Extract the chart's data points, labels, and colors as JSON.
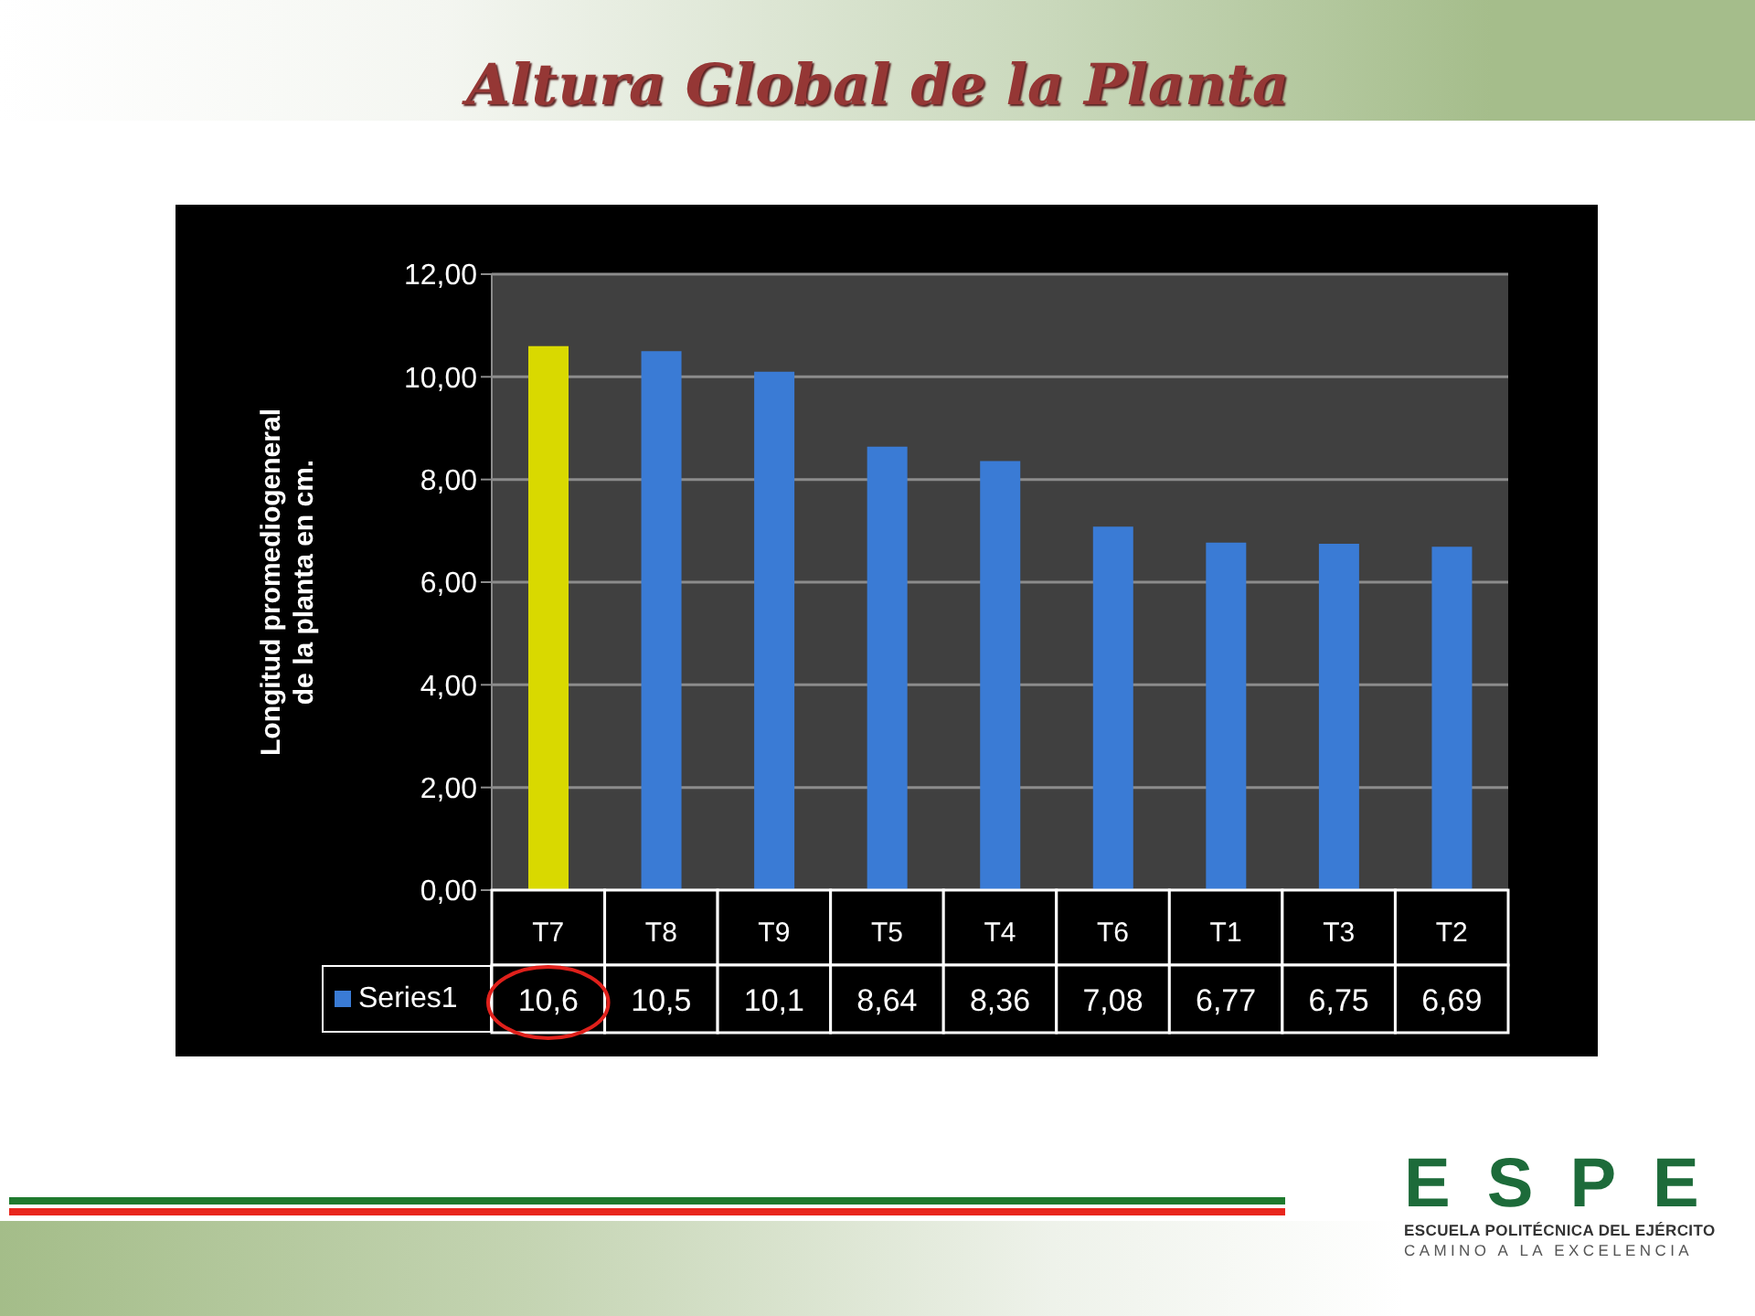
{
  "chart_data": {
    "type": "bar",
    "title": "Altura Global de la Planta",
    "ylabel": "Longitud promediogeneral de la planta en cm.",
    "categories": [
      "T7",
      "T8",
      "T9",
      "T5",
      "T4",
      "T6",
      "T1",
      "T3",
      "T2"
    ],
    "series": [
      {
        "name": "Series1",
        "color": "#3a7bd5",
        "colors": [
          "#d9d900",
          "#3a7bd5",
          "#3a7bd5",
          "#3a7bd5",
          "#3a7bd5",
          "#3a7bd5",
          "#3a7bd5",
          "#3a7bd5",
          "#3a7bd5"
        ],
        "values": [
          10.6,
          10.5,
          10.1,
          8.64,
          8.36,
          7.08,
          6.77,
          6.75,
          6.69
        ],
        "value_labels": [
          "10,6",
          "10,5",
          "10,1",
          "8,64",
          "8,36",
          "7,08",
          "6,77",
          "6,75",
          "6,69"
        ]
      }
    ],
    "ylim": [
      0,
      12
    ],
    "yticks": [
      {
        "value": 0,
        "label": "0,00"
      },
      {
        "value": 2,
        "label": "2,00"
      },
      {
        "value": 4,
        "label": "4,00"
      },
      {
        "value": 6,
        "label": "6,00"
      },
      {
        "value": 8,
        "label": "8,00"
      },
      {
        "value": 10,
        "label": "10,00"
      },
      {
        "value": 12,
        "label": "12,00"
      }
    ],
    "grid": "y",
    "legend": "bottom left",
    "annotations": [
      "ESPE",
      "ESCUELA POLITÉCNICA DEL EJÉRCITO",
      "CAMINO A LA EXCELENCIA"
    ]
  }
}
